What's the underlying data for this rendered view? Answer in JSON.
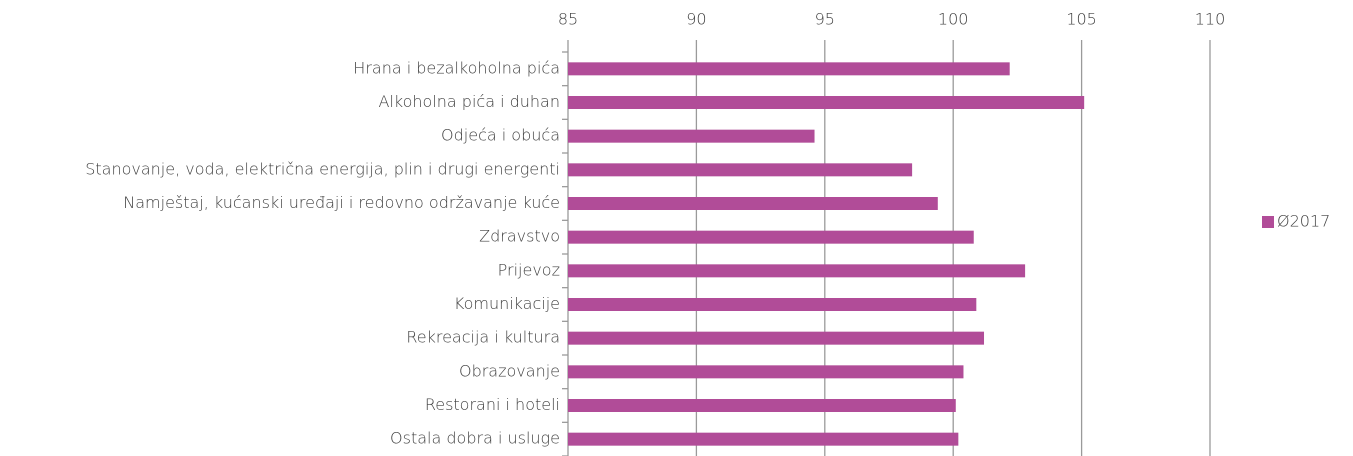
{
  "chart_data": {
    "type": "bar",
    "orientation": "horizontal",
    "categories": [
      "Hrana i bezalkoholna pića",
      "Alkoholna pića i duhan",
      "Odjeća i obuća",
      "Stanovanje, voda, električna energija, plin i drugi energenti",
      "Namještaj, kućanski uređaji i redovno održavanje kuće",
      "Zdravstvo",
      "Prijevoz",
      "Komunikacije",
      "Rekreacija i kultura",
      "Obrazovanje",
      "Restorani i hoteli",
      "Ostala dobra i usluge"
    ],
    "series": [
      {
        "name": "Ø2017",
        "color": "#b14c98",
        "values": [
          102.2,
          105.1,
          94.6,
          98.4,
          99.4,
          100.8,
          102.8,
          100.9,
          101.2,
          100.4,
          100.1,
          100.2
        ]
      }
    ],
    "xlim": [
      85,
      110
    ],
    "xticks": [
      85,
      90,
      95,
      100,
      105,
      110
    ],
    "grid": true,
    "legend": "right"
  }
}
